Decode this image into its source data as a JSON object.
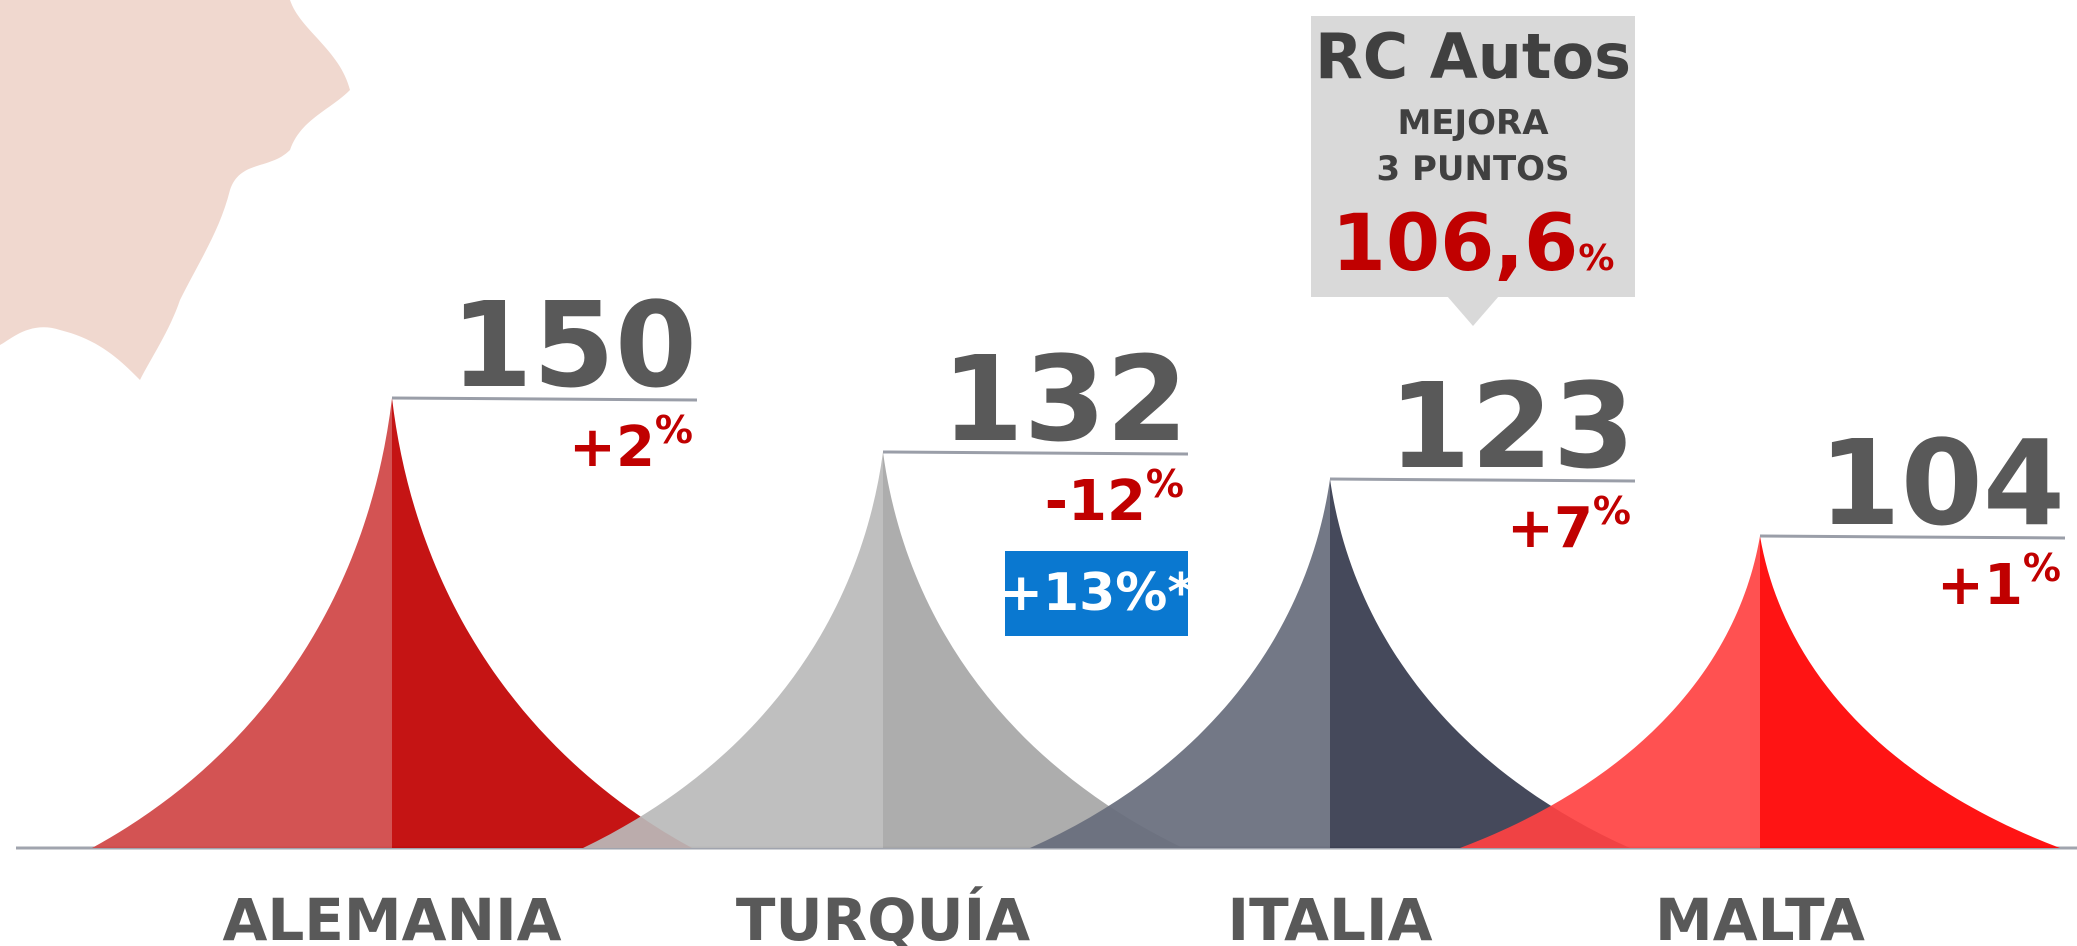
{
  "chart_data": {
    "type": "peak",
    "categories": [
      "ALEMANIA",
      "TURQUÍA",
      "ITALIA",
      "MALTA"
    ],
    "values": [
      150,
      132,
      123,
      104
    ],
    "changes": [
      2,
      -12,
      7,
      1
    ],
    "change_labels": [
      "+2%",
      "-12%",
      "+7%",
      "+1%"
    ],
    "colors": [
      [
        "#cf4444",
        "#c00000"
      ],
      [
        "#bababa",
        "#a6a6a6"
      ],
      [
        "#676c7c",
        "#353a4d"
      ],
      [
        "#ff4242",
        "#ff0000"
      ]
    ],
    "badge": {
      "category": 1,
      "text": "+13%*",
      "color": "#0a78d0"
    },
    "callout": {
      "category": 2,
      "title": "RC Autos",
      "lines": [
        "MEJORA",
        "3 PUNTOS"
      ],
      "value": 106.6,
      "value_label": "106,6%"
    }
  }
}
